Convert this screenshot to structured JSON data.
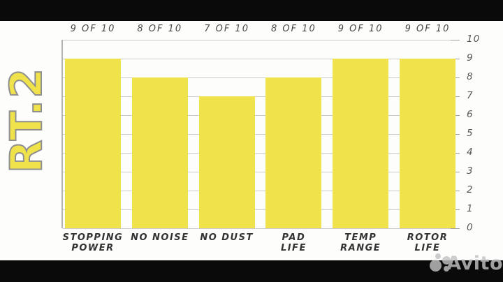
{
  "chart_data": {
    "type": "bar",
    "title": "RT.2",
    "categories": [
      "STOPPING\nPOWER",
      "NO NOISE",
      "NO DUST",
      "PAD\nLIFE",
      "TEMP\nRANGE",
      "ROTOR\nLIFE"
    ],
    "values": [
      9,
      8,
      7,
      8,
      9,
      9
    ],
    "value_labels": [
      "9 OF 10",
      "8 OF 10",
      "7 OF 10",
      "8 OF 10",
      "9 OF 10",
      "9 OF 10"
    ],
    "y_ticks": [
      10,
      9,
      8,
      7,
      6,
      5,
      4,
      3,
      2,
      1,
      0
    ],
    "ylim": [
      0,
      10
    ],
    "grid": true,
    "legend": false,
    "bar_color": "#f0e24b",
    "xlabel": "",
    "ylabel": ""
  },
  "watermark": {
    "brand": "Avito"
  },
  "colors": {
    "bar_yellow": "#f0e24b",
    "grid_line": "#cbcbcb",
    "axis_line": "#b3b3b3",
    "label_text": "#333333",
    "frame_black": "#0a0a0a",
    "watermark_gray": "#c2c2c2"
  }
}
